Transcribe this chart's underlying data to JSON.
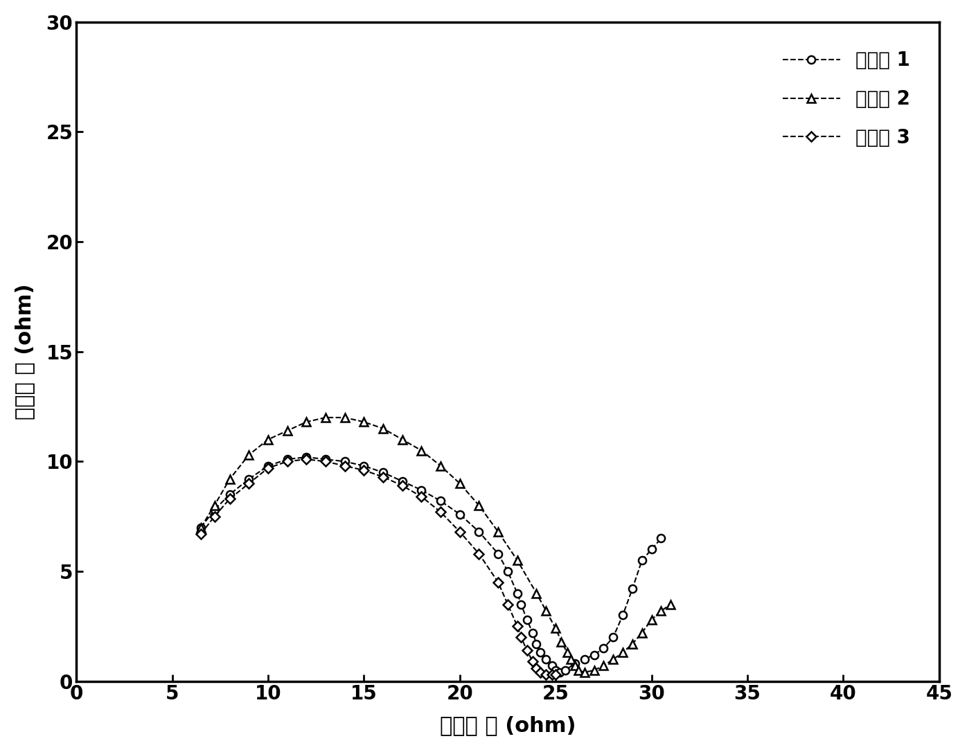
{
  "series1_label": "实施例 1",
  "series2_label": "实施例 2",
  "series3_label": "实施例 3",
  "xlabel": "实部阻 抗 (ohm)",
  "ylabel": "虚部阻 抗 (ohm)",
  "xlim": [
    0,
    45
  ],
  "ylim": [
    0,
    30
  ],
  "xticks": [
    0,
    5,
    10,
    15,
    20,
    25,
    30,
    35,
    40,
    45
  ],
  "yticks": [
    0,
    5,
    10,
    15,
    20,
    25,
    30
  ],
  "background_color": "#ffffff",
  "line_color": "#000000",
  "marker_color": "#000000",
  "series1_x": [
    6.5,
    7.2,
    8.0,
    9.0,
    10.0,
    11.0,
    12.0,
    13.0,
    14.0,
    15.0,
    16.0,
    17.0,
    18.0,
    19.0,
    20.0,
    21.0,
    22.0,
    22.5,
    23.0,
    23.2,
    23.5,
    23.8,
    24.0,
    24.2,
    24.5,
    24.8,
    25.0,
    25.2,
    25.5,
    26.0,
    26.5,
    27.0,
    27.5,
    28.0,
    28.5,
    29.0,
    29.5,
    30.0,
    30.5
  ],
  "series1_y": [
    7.0,
    7.8,
    8.5,
    9.2,
    9.8,
    10.1,
    10.2,
    10.1,
    10.0,
    9.8,
    9.5,
    9.1,
    8.7,
    8.2,
    7.6,
    6.8,
    5.8,
    5.0,
    4.0,
    3.5,
    2.8,
    2.2,
    1.7,
    1.3,
    1.0,
    0.7,
    0.5,
    0.4,
    0.5,
    0.8,
    1.0,
    1.2,
    1.5,
    2.0,
    3.0,
    4.2,
    5.5,
    6.0,
    6.5
  ],
  "series2_x": [
    6.5,
    7.2,
    8.0,
    9.0,
    10.0,
    11.0,
    12.0,
    13.0,
    14.0,
    15.0,
    16.0,
    17.0,
    18.0,
    19.0,
    20.0,
    21.0,
    22.0,
    23.0,
    24.0,
    24.5,
    25.0,
    25.3,
    25.6,
    25.8,
    26.0,
    26.2,
    26.5,
    27.0,
    27.5,
    28.0,
    28.5,
    29.0,
    29.5,
    30.0,
    30.5,
    31.0
  ],
  "series2_y": [
    7.0,
    8.0,
    9.2,
    10.3,
    11.0,
    11.4,
    11.8,
    12.0,
    12.0,
    11.8,
    11.5,
    11.0,
    10.5,
    9.8,
    9.0,
    8.0,
    6.8,
    5.5,
    4.0,
    3.2,
    2.4,
    1.8,
    1.3,
    1.0,
    0.7,
    0.5,
    0.4,
    0.5,
    0.7,
    1.0,
    1.3,
    1.7,
    2.2,
    2.8,
    3.2,
    3.5
  ],
  "series3_x": [
    6.5,
    7.2,
    8.0,
    9.0,
    10.0,
    11.0,
    12.0,
    13.0,
    14.0,
    15.0,
    16.0,
    17.0,
    18.0,
    19.0,
    20.0,
    21.0,
    22.0,
    22.5,
    23.0,
    23.2,
    23.5,
    23.8,
    24.0,
    24.2,
    24.5,
    24.8,
    25.0
  ],
  "series3_y": [
    6.7,
    7.5,
    8.3,
    9.0,
    9.7,
    10.0,
    10.1,
    10.0,
    9.8,
    9.6,
    9.3,
    8.9,
    8.4,
    7.7,
    6.8,
    5.8,
    4.5,
    3.5,
    2.5,
    2.0,
    1.4,
    0.9,
    0.6,
    0.4,
    0.3,
    0.3,
    0.3
  ],
  "marker_size": 8,
  "linewidth": 1.5,
  "label_fontsize": 22,
  "tick_fontsize": 20,
  "legend_fontsize": 20
}
